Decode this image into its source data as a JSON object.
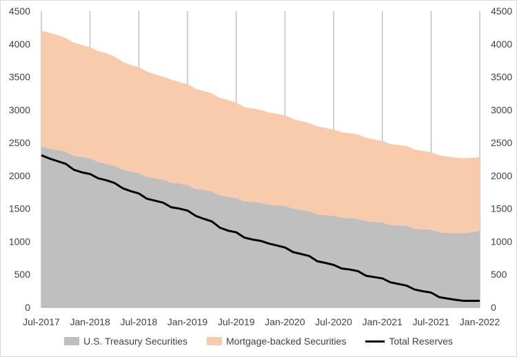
{
  "chart_data": {
    "type": "area",
    "title": "",
    "xlabel": "",
    "ylabel": "",
    "ylim": [
      0,
      4500
    ],
    "y_ticks": [
      0,
      500,
      1000,
      1500,
      2000,
      2500,
      3000,
      3500,
      4000,
      4500
    ],
    "y_tick_labels": [
      "0",
      "500",
      "1000",
      "1500",
      "2000",
      "2500",
      "3000",
      "3500",
      "4000",
      "4500"
    ],
    "y2_tick_labels": [
      "0",
      "500",
      "1000",
      "1500",
      "2000",
      "2500",
      "3000",
      "3500",
      "4000",
      "4500"
    ],
    "x_range": [
      "2017-07",
      "2022-01"
    ],
    "x_tick_labels": [
      "Jul-2017",
      "Jan-2018",
      "Jul-2018",
      "Jan-2019",
      "Jul-2019",
      "Jan-2020",
      "Jul-2020",
      "Jan-2021",
      "Jul-2021",
      "Jan-2022"
    ],
    "gridlines": "vertical",
    "legend_position": "bottom",
    "months": [
      0,
      1,
      2,
      3,
      4,
      5,
      6,
      7,
      8,
      9,
      10,
      11,
      12,
      13,
      14,
      15,
      16,
      17,
      18,
      19,
      20,
      21,
      22,
      23,
      24,
      25,
      26,
      27,
      28,
      29,
      30,
      31,
      32,
      33,
      34,
      35,
      36,
      37,
      38,
      39,
      40,
      41,
      42,
      43,
      44,
      45,
      46,
      47,
      48,
      49,
      50,
      51,
      52,
      53,
      54
    ],
    "series": [
      {
        "name": "U.S. Treasury Securities",
        "color": "#bfbfbf",
        "stacked": true,
        "values": [
          2440,
          2410,
          2390,
          2365,
          2300,
          2285,
          2260,
          2210,
          2180,
          2150,
          2090,
          2060,
          2040,
          1980,
          1960,
          1940,
          1895,
          1880,
          1860,
          1800,
          1785,
          1760,
          1700,
          1680,
          1660,
          1610,
          1600,
          1590,
          1560,
          1550,
          1540,
          1500,
          1480,
          1460,
          1410,
          1400,
          1390,
          1360,
          1355,
          1345,
          1310,
          1300,
          1290,
          1250,
          1245,
          1240,
          1195,
          1185,
          1180,
          1140,
          1130,
          1125,
          1125,
          1140,
          1160
        ]
      },
      {
        "name": "Mortgage-backed Securities",
        "color": "#f8cbad",
        "stacked": true,
        "values": [
          1760,
          1760,
          1745,
          1725,
          1720,
          1700,
          1690,
          1680,
          1680,
          1660,
          1640,
          1620,
          1610,
          1600,
          1580,
          1560,
          1565,
          1540,
          1530,
          1520,
          1500,
          1490,
          1480,
          1470,
          1450,
          1430,
          1420,
          1410,
          1400,
          1390,
          1380,
          1360,
          1350,
          1340,
          1340,
          1325,
          1310,
          1300,
          1290,
          1280,
          1265,
          1250,
          1240,
          1230,
          1220,
          1210,
          1200,
          1190,
          1175,
          1170,
          1160,
          1150,
          1140,
          1130,
          1120
        ]
      },
      {
        "name": "Total Reserves",
        "color": "#000000",
        "stacked": false,
        "values": [
          2310,
          2260,
          2220,
          2180,
          2090,
          2050,
          2025,
          1960,
          1930,
          1890,
          1810,
          1765,
          1730,
          1650,
          1620,
          1590,
          1520,
          1500,
          1470,
          1390,
          1345,
          1305,
          1210,
          1165,
          1140,
          1060,
          1030,
          1010,
          970,
          940,
          910,
          840,
          810,
          780,
          700,
          675,
          645,
          590,
          575,
          550,
          480,
          460,
          440,
          380,
          355,
          330,
          270,
          245,
          225,
          155,
          135,
          115,
          100,
          100,
          100
        ]
      }
    ]
  }
}
